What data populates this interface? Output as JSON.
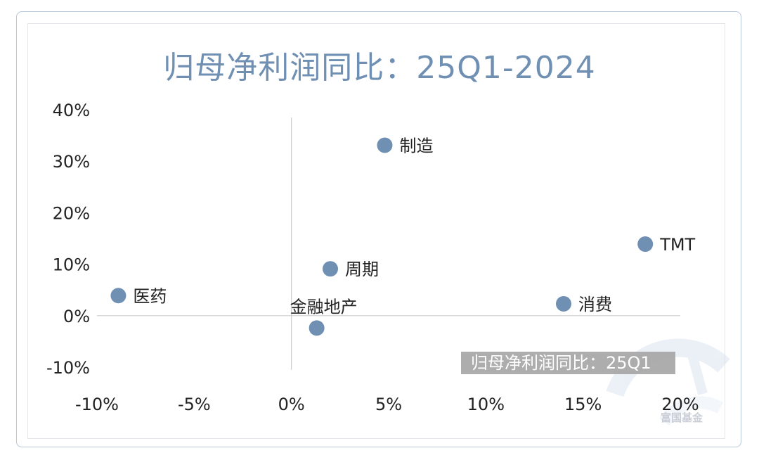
{
  "chart_data": {
    "type": "scatter",
    "title": "归母净利润同比：25Q1-2024",
    "xlabel": "",
    "ylabel": "",
    "xlim": [
      -0.1,
      0.2
    ],
    "ylim": [
      -0.1,
      0.4
    ],
    "x_ticks": [
      "-10%",
      "-5%",
      "0%",
      "5%",
      "10%",
      "15%",
      "20%"
    ],
    "y_ticks": [
      "40%",
      "30%",
      "20%",
      "10%",
      "0%",
      "-10%"
    ],
    "x_tick_values": [
      -0.1,
      -0.05,
      0,
      0.05,
      0.1,
      0.15,
      0.2
    ],
    "y_tick_values": [
      0.4,
      0.3,
      0.2,
      0.1,
      0,
      -0.1
    ],
    "points": [
      {
        "label": "制造",
        "x": 0.048,
        "y": 0.331,
        "label_pos": "right"
      },
      {
        "label": "TMT",
        "x": 0.182,
        "y": 0.139,
        "label_pos": "right"
      },
      {
        "label": "周期",
        "x": 0.02,
        "y": 0.091,
        "label_pos": "right"
      },
      {
        "label": "医药",
        "x": -0.089,
        "y": 0.039,
        "label_pos": "right"
      },
      {
        "label": "消费",
        "x": 0.14,
        "y": 0.023,
        "label_pos": "right"
      },
      {
        "label": "金融地产",
        "x": 0.013,
        "y": -0.024,
        "label_pos": "above"
      }
    ],
    "grid": false,
    "marker_color": "#6f8fb3"
  },
  "watermark": {
    "caption": "归母净利润同比：25Q1",
    "brand": "富国基金"
  }
}
